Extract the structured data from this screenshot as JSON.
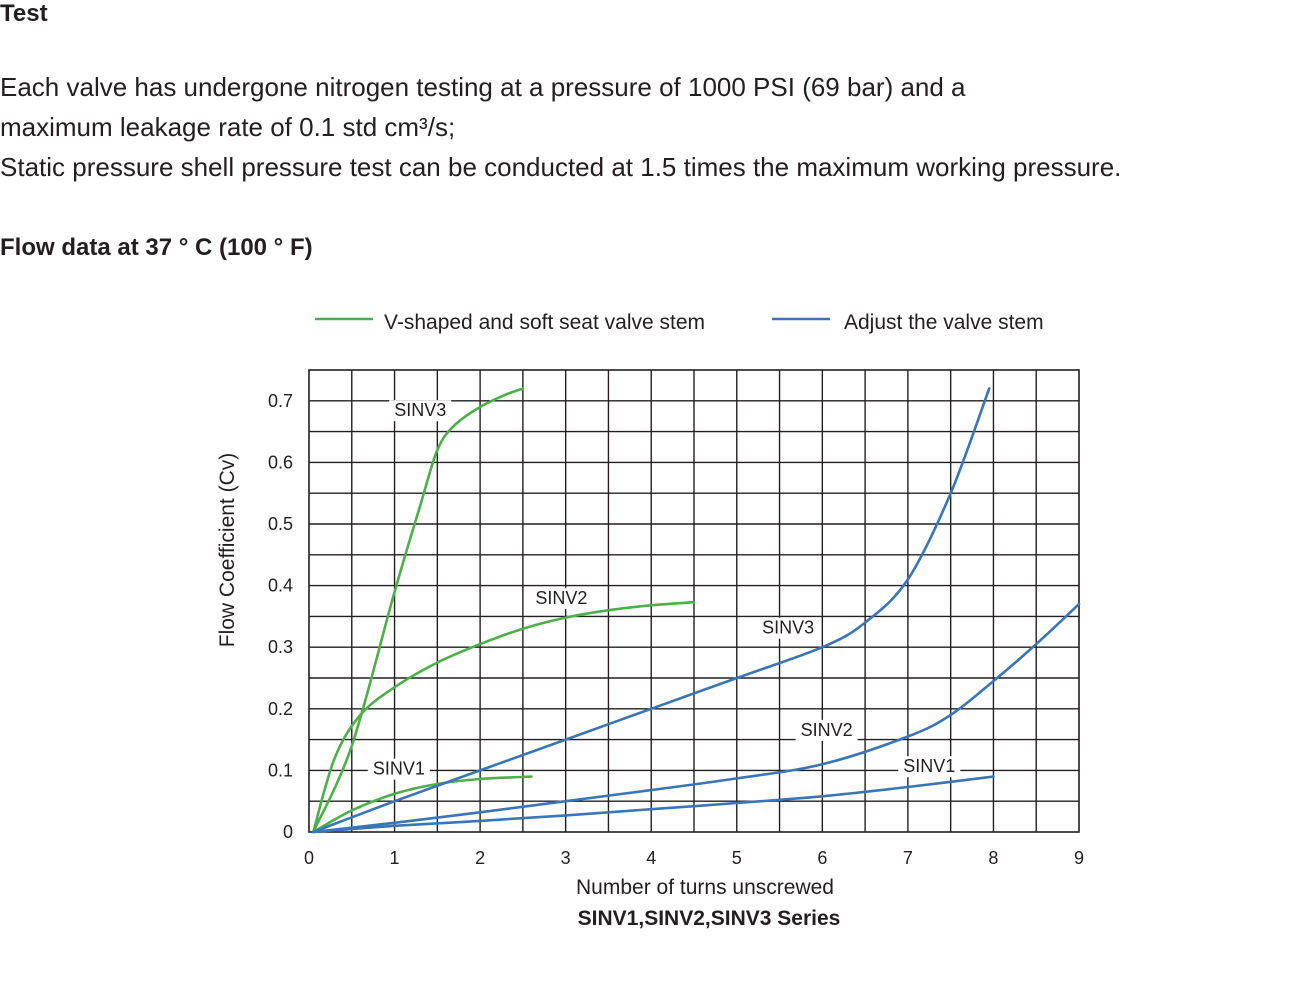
{
  "text": {
    "test_heading": "Test",
    "para_lines": [
      "Each valve has undergone nitrogen testing at a pressure of 1000 PSI (69 bar) and a",
      "maximum leakage rate of 0.1 std cm³/s;",
      "Static pressure shell pressure test can be conducted at 1.5 times the maximum working pressure."
    ],
    "flow_heading": "Flow data at 37 ° C (100 ° F)"
  },
  "chart_data": {
    "type": "line",
    "title": "",
    "xlabel": "Number of turns unscrewed",
    "ylabel": "Flow Coefficient (Cv)",
    "caption": "SINV1,SINV2,SINV3 Series",
    "xlim": [
      0,
      9
    ],
    "ylim": [
      0,
      0.75
    ],
    "x_ticks": [
      0,
      1,
      2,
      3,
      4,
      5,
      6,
      7,
      8,
      9
    ],
    "y_ticks": [
      0,
      0.1,
      0.2,
      0.3,
      0.4,
      0.5,
      0.6,
      0.7
    ],
    "y_tick_labels": [
      "0",
      "0.1",
      "0.2",
      "0.3",
      "0.4",
      "0.5",
      "0.6",
      "0.7"
    ],
    "grid": true,
    "grid_x_step": 0.5,
    "grid_y_step": 0.05,
    "legend_position": "top",
    "legend": [
      {
        "label": "V-shaped and soft seat valve stem",
        "color": "#4daf4a"
      },
      {
        "label": "Adjust the valve stem",
        "color": "#3a75b8"
      }
    ],
    "series": [
      {
        "group": "V-shaped and soft seat valve stem",
        "label": "SINV3",
        "color": "#4daf4a",
        "x": [
          0.05,
          0.5,
          1.0,
          1.3,
          1.5,
          1.7,
          2.0,
          2.3,
          2.5
        ],
        "y": [
          0,
          0.14,
          0.39,
          0.53,
          0.62,
          0.66,
          0.69,
          0.71,
          0.72
        ]
      },
      {
        "group": "V-shaped and soft seat valve stem",
        "label": "SINV2",
        "color": "#4daf4a",
        "x": [
          0.05,
          0.3,
          0.6,
          1.0,
          1.5,
          2.0,
          2.5,
          3.0,
          3.5,
          4.0,
          4.5
        ],
        "y": [
          0,
          0.12,
          0.19,
          0.235,
          0.275,
          0.305,
          0.33,
          0.348,
          0.36,
          0.368,
          0.373
        ]
      },
      {
        "group": "V-shaped and soft seat valve stem",
        "label": "SINV1",
        "color": "#4daf4a",
        "x": [
          0.05,
          0.5,
          1.0,
          1.5,
          2.0,
          2.6
        ],
        "y": [
          0,
          0.035,
          0.062,
          0.078,
          0.086,
          0.09
        ]
      },
      {
        "group": "Adjust the valve stem",
        "label": "SINV3",
        "color": "#3a75b8",
        "x": [
          0.05,
          1.0,
          2.0,
          3.0,
          4.0,
          5.0,
          6.0,
          6.5,
          7.0,
          7.5,
          7.95
        ],
        "y": [
          0,
          0.05,
          0.1,
          0.15,
          0.2,
          0.25,
          0.3,
          0.34,
          0.41,
          0.55,
          0.72
        ]
      },
      {
        "group": "Adjust the valve stem",
        "label": "SINV2",
        "color": "#3a75b8",
        "x": [
          0.05,
          1.0,
          2.0,
          3.0,
          4.0,
          5.0,
          6.0,
          7.0,
          7.5,
          8.0,
          8.5,
          9.0
        ],
        "y": [
          0,
          0.015,
          0.032,
          0.05,
          0.068,
          0.087,
          0.11,
          0.155,
          0.19,
          0.245,
          0.305,
          0.37
        ]
      },
      {
        "group": "Adjust the valve stem",
        "label": "SINV1",
        "color": "#3a75b8",
        "x": [
          0.05,
          1.0,
          2.0,
          3.0,
          4.0,
          5.0,
          6.0,
          7.0,
          8.0
        ],
        "y": [
          0,
          0.01,
          0.018,
          0.027,
          0.037,
          0.047,
          0.058,
          0.073,
          0.09
        ]
      }
    ],
    "annotations": [
      {
        "text": "SINV3",
        "x": 1.3,
        "y": 0.675,
        "group": "V-shaped and soft seat valve stem"
      },
      {
        "text": "SINV2",
        "x": 2.95,
        "y": 0.37,
        "group": "V-shaped and soft seat valve stem"
      },
      {
        "text": "SINV1",
        "x": 1.05,
        "y": 0.093,
        "group": "V-shaped and soft seat valve stem"
      },
      {
        "text": "SINV3",
        "x": 5.6,
        "y": 0.322,
        "group": "Adjust the valve stem"
      },
      {
        "text": "SINV2",
        "x": 6.05,
        "y": 0.156,
        "group": "Adjust the valve stem"
      },
      {
        "text": "SINV1",
        "x": 7.25,
        "y": 0.097,
        "group": "Adjust the valve stem"
      }
    ]
  }
}
